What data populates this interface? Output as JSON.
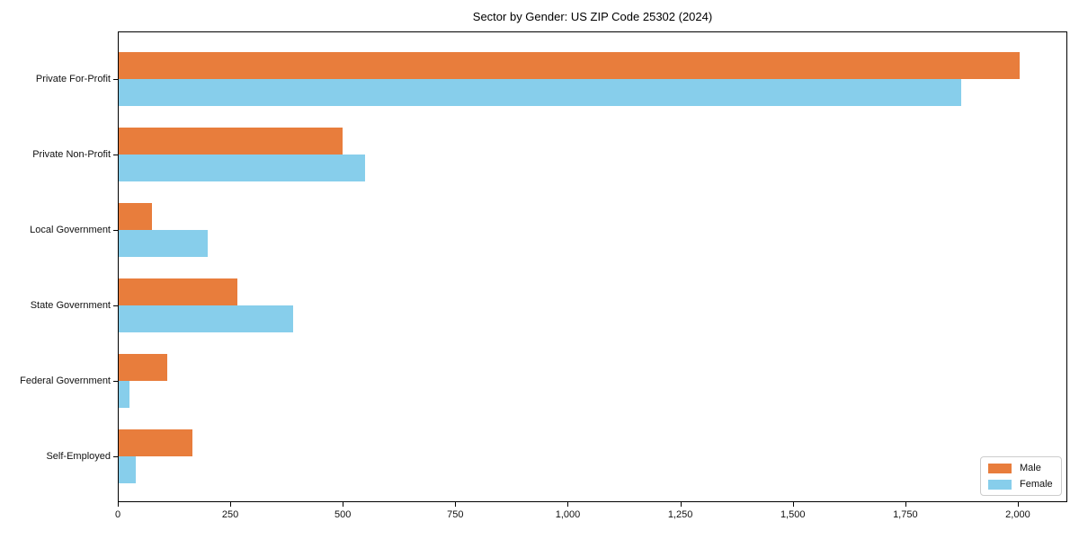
{
  "chart_data": {
    "type": "bar",
    "orientation": "horizontal",
    "title": "Sector by Gender: US ZIP Code 25302 (2024)",
    "categories": [
      "Private For-Profit",
      "Private Non-Profit",
      "Local Government",
      "State Government",
      "Federal Government",
      "Self-Employed"
    ],
    "series": [
      {
        "name": "Male",
        "color": "#e87d3c",
        "values": [
          2005,
          500,
          75,
          265,
          110,
          165
        ]
      },
      {
        "name": "Female",
        "color": "#87ceeb",
        "values": [
          1875,
          550,
          200,
          390,
          25,
          40
        ]
      }
    ],
    "xlabel": "",
    "ylabel": "",
    "xlim": [
      0,
      2110
    ],
    "xticks": [
      0,
      250,
      500,
      750,
      1000,
      1250,
      1500,
      1750,
      2000
    ],
    "xtick_labels": [
      "0",
      "250",
      "500",
      "750",
      "1,000",
      "1,250",
      "1,500",
      "1,750",
      "2,000"
    ],
    "grid": false,
    "legend_position": "lower right",
    "plot_border_color": "#000000",
    "background_color": "#ffffff"
  }
}
